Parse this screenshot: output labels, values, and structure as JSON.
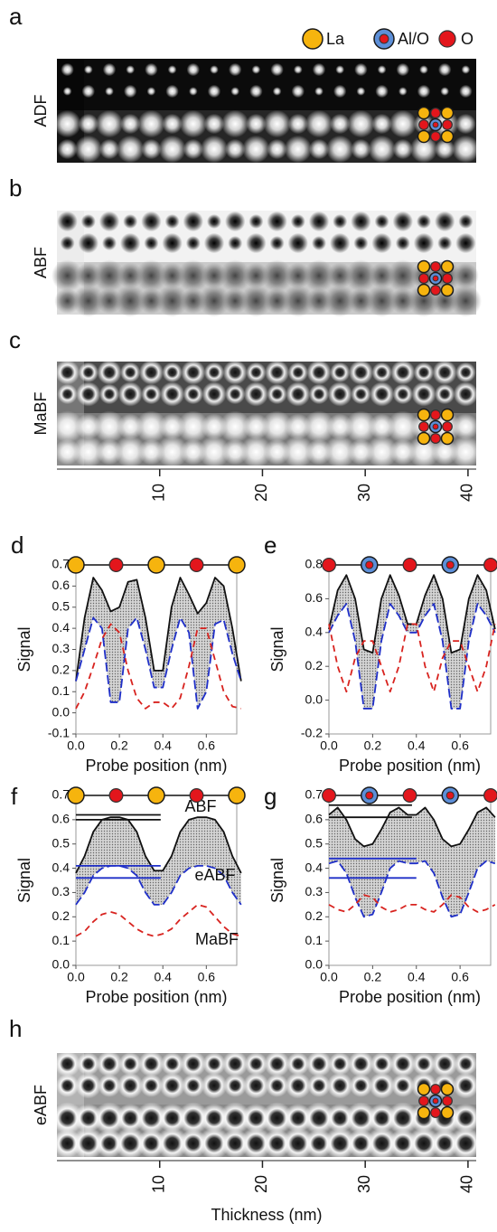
{
  "legend": [
    "La",
    "Al/O",
    "O"
  ],
  "images": [
    {
      "panel": "a",
      "label": "ADF"
    },
    {
      "panel": "b",
      "label": "ABF"
    },
    {
      "panel": "c",
      "label": "MaBF"
    },
    {
      "panel": "h",
      "label": "eABF"
    }
  ],
  "thickness_axis": {
    "xlim": [
      0,
      40.8
    ],
    "xticks": [
      10,
      20,
      30,
      40
    ],
    "label": "Thickness (nm)"
  },
  "chart_data": [
    {
      "type": "line",
      "panel": "d",
      "ylabel": "Signal",
      "xlabel": "Probe position (nm)",
      "x": [
        0,
        0.04,
        0.08,
        0.12,
        0.16,
        0.2,
        0.24,
        0.28,
        0.32,
        0.36,
        0.4,
        0.44,
        0.48,
        0.52,
        0.56,
        0.6,
        0.64,
        0.68,
        0.72,
        0.76
      ],
      "xlim": [
        0,
        0.74
      ],
      "ylim": [
        -0.1,
        0.7
      ],
      "xticks": [
        {
          "value": 0,
          "label": "0.0"
        },
        0.2,
        0.4,
        0.6
      ],
      "yticks": [
        -0.1,
        {
          "value": 0,
          "label": "0.0"
        },
        0.1,
        0.2,
        0.3,
        0.4,
        0.5,
        0.6,
        0.7
      ],
      "series": [
        {
          "color": "#111111",
          "values": [
            0.15,
            0.45,
            0.64,
            0.58,
            0.48,
            0.5,
            0.62,
            0.63,
            0.45,
            0.2,
            0.2,
            0.5,
            0.64,
            0.56,
            0.47,
            0.52,
            0.64,
            0.6,
            0.4,
            0.15
          ]
        },
        {
          "color": "#1f2fc8",
          "values": [
            0.15,
            0.3,
            0.45,
            0.4,
            0.05,
            0.05,
            0.4,
            0.45,
            0.3,
            0.12,
            0.12,
            0.3,
            0.45,
            0.38,
            0.02,
            0.1,
            0.42,
            0.44,
            0.28,
            0.15
          ]
        },
        {
          "color": "#d8231f",
          "values": [
            0.02,
            0.1,
            0.22,
            0.35,
            0.42,
            0.38,
            0.2,
            0.07,
            0.02,
            0.05,
            0.05,
            0.02,
            0.07,
            0.22,
            0.4,
            0.4,
            0.25,
            0.1,
            0.03,
            0.02
          ]
        }
      ]
    },
    {
      "type": "line",
      "panel": "e",
      "ylabel": "Signal",
      "xlabel": "Probe position (nm)",
      "x": [
        0,
        0.04,
        0.08,
        0.12,
        0.16,
        0.2,
        0.24,
        0.28,
        0.32,
        0.36,
        0.4,
        0.44,
        0.48,
        0.52,
        0.56,
        0.6,
        0.64,
        0.68,
        0.72,
        0.76
      ],
      "xlim": [
        0,
        0.74
      ],
      "ylim": [
        -0.2,
        0.8
      ],
      "xticks": [
        {
          "value": 0,
          "label": "0.0"
        },
        0.2,
        0.4,
        0.6
      ],
      "yticks": [
        -0.2,
        {
          "value": 0,
          "label": "0.0"
        },
        0.2,
        0.4,
        0.6,
        0.8
      ],
      "series": [
        {
          "color": "#111111",
          "values": [
            0.42,
            0.65,
            0.74,
            0.6,
            0.3,
            0.28,
            0.6,
            0.74,
            0.62,
            0.45,
            0.45,
            0.62,
            0.74,
            0.6,
            0.28,
            0.3,
            0.6,
            0.74,
            0.65,
            0.42
          ]
        },
        {
          "color": "#1f2fc8",
          "values": [
            0.4,
            0.5,
            0.57,
            0.35,
            -0.05,
            -0.05,
            0.35,
            0.57,
            0.5,
            0.4,
            0.4,
            0.5,
            0.57,
            0.35,
            -0.05,
            -0.05,
            0.35,
            0.57,
            0.5,
            0.4
          ]
        },
        {
          "color": "#d8231f",
          "values": [
            0.45,
            0.2,
            0.05,
            0.25,
            0.35,
            0.35,
            0.2,
            0.05,
            0.2,
            0.45,
            0.45,
            0.2,
            0.05,
            0.25,
            0.35,
            0.35,
            0.2,
            0.05,
            0.2,
            0.45
          ]
        }
      ]
    },
    {
      "type": "line",
      "panel": "f",
      "ylabel": "Signal",
      "xlabel": "Probe position (nm)",
      "x": [
        0,
        0.04,
        0.08,
        0.12,
        0.16,
        0.2,
        0.24,
        0.28,
        0.32,
        0.36,
        0.4,
        0.44,
        0.48,
        0.52,
        0.56,
        0.6,
        0.64,
        0.68,
        0.72,
        0.76
      ],
      "xlim": [
        0,
        0.74
      ],
      "ylim": [
        0,
        0.7
      ],
      "xticks": [
        {
          "value": 0,
          "label": "0.0"
        },
        0.2,
        0.4,
        0.6
      ],
      "yticks": [
        {
          "value": 0,
          "label": "0.0"
        },
        0.1,
        0.2,
        0.3,
        0.4,
        0.5,
        0.6,
        0.7
      ],
      "series": [
        {
          "name": "ABF",
          "color": "#111111",
          "values": [
            0.38,
            0.45,
            0.55,
            0.6,
            0.61,
            0.61,
            0.6,
            0.55,
            0.45,
            0.39,
            0.39,
            0.45,
            0.55,
            0.6,
            0.61,
            0.61,
            0.6,
            0.55,
            0.45,
            0.38
          ]
        },
        {
          "name": "eABF",
          "color": "#1f2fc8",
          "values": [
            0.25,
            0.3,
            0.37,
            0.4,
            0.41,
            0.41,
            0.4,
            0.37,
            0.3,
            0.25,
            0.25,
            0.3,
            0.37,
            0.4,
            0.41,
            0.41,
            0.4,
            0.37,
            0.3,
            0.25
          ]
        },
        {
          "name": "MaBF",
          "color": "#d8231f",
          "values": [
            0.12,
            0.14,
            0.18,
            0.21,
            0.22,
            0.21,
            0.18,
            0.15,
            0.13,
            0.12,
            0.13,
            0.15,
            0.19,
            0.22,
            0.25,
            0.24,
            0.2,
            0.16,
            0.13,
            0.12
          ]
        }
      ],
      "reference_lines": [
        {
          "y": 0.62,
          "x": [
            0,
            0.39
          ],
          "color": "#111111"
        },
        {
          "y": 0.6,
          "x": [
            0,
            0.39
          ],
          "color": "#111111"
        },
        {
          "y": 0.41,
          "x": [
            0,
            0.39
          ],
          "color": "#1f2fc8"
        },
        {
          "y": 0.36,
          "x": [
            0,
            0.39
          ],
          "color": "#1f2fc8"
        }
      ]
    },
    {
      "type": "line",
      "panel": "g",
      "ylabel": "Signal",
      "xlabel": "Probe position (nm)",
      "x": [
        0,
        0.04,
        0.08,
        0.12,
        0.16,
        0.2,
        0.24,
        0.28,
        0.32,
        0.36,
        0.4,
        0.44,
        0.48,
        0.52,
        0.56,
        0.6,
        0.64,
        0.68,
        0.72,
        0.76
      ],
      "xlim": [
        0,
        0.74
      ],
      "ylim": [
        0,
        0.7
      ],
      "xticks": [
        {
          "value": 0,
          "label": "0.0"
        },
        0.2,
        0.4,
        0.6
      ],
      "yticks": [
        {
          "value": 0,
          "label": "0.0"
        },
        0.1,
        0.2,
        0.3,
        0.4,
        0.5,
        0.6,
        0.7
      ],
      "series": [
        {
          "color": "#111111",
          "values": [
            0.62,
            0.65,
            0.6,
            0.52,
            0.49,
            0.5,
            0.56,
            0.63,
            0.65,
            0.62,
            0.62,
            0.65,
            0.6,
            0.52,
            0.49,
            0.5,
            0.56,
            0.63,
            0.65,
            0.61
          ]
        },
        {
          "color": "#1f2fc8",
          "values": [
            0.42,
            0.43,
            0.38,
            0.28,
            0.2,
            0.21,
            0.3,
            0.4,
            0.43,
            0.42,
            0.42,
            0.43,
            0.38,
            0.28,
            0.2,
            0.21,
            0.3,
            0.4,
            0.43,
            0.42
          ]
        },
        {
          "color": "#d8231f",
          "values": [
            0.25,
            0.23,
            0.22,
            0.25,
            0.29,
            0.28,
            0.24,
            0.22,
            0.23,
            0.25,
            0.25,
            0.23,
            0.22,
            0.25,
            0.29,
            0.28,
            0.24,
            0.22,
            0.23,
            0.25
          ]
        }
      ],
      "reference_lines": [
        {
          "y": 0.66,
          "x": [
            0,
            0.38
          ],
          "color": "#111111"
        },
        {
          "y": 0.61,
          "x": [
            0,
            0.38
          ],
          "color": "#111111"
        },
        {
          "y": 0.44,
          "x": [
            0,
            0.4
          ],
          "color": "#1f2fc8"
        },
        {
          "y": 0.36,
          "x": [
            0,
            0.4
          ],
          "color": "#1f2fc8"
        }
      ]
    }
  ]
}
